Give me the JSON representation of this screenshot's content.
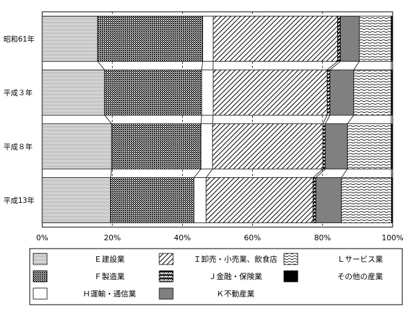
{
  "chart_data": {
    "type": "bar",
    "orientation": "horizontal",
    "stacked": "percent",
    "categories": [
      "昭和61年",
      "平成３年",
      "平成８年",
      "平成13年"
    ],
    "series": [
      {
        "name": "Ｅ建設業",
        "values": [
          15.8,
          17.8,
          19.8,
          19.5
        ],
        "pattern": "hstripe"
      },
      {
        "name": "Ｆ製造業",
        "values": [
          30.0,
          27.7,
          25.5,
          23.8
        ],
        "pattern": "dots"
      },
      {
        "name": "Ｈ運輸・通信業",
        "values": [
          3.0,
          3.3,
          3.3,
          3.5
        ],
        "pattern": "white"
      },
      {
        "name": "Ｉ卸売・小売業、飲食店",
        "values": [
          35.5,
          32.5,
          31.5,
          30.5
        ],
        "pattern": "diag"
      },
      {
        "name": "Ｊ金融・保険業",
        "values": [
          0.8,
          0.8,
          0.7,
          0.8
        ],
        "pattern": "zigzag"
      },
      {
        "name": "Ｋ不動産業",
        "values": [
          5.4,
          6.8,
          6.3,
          7.3
        ],
        "pattern": "gray"
      },
      {
        "name": "Ｌサービス業",
        "values": [
          9.1,
          10.7,
          12.5,
          14.3
        ],
        "pattern": "wave"
      },
      {
        "name": "その他の産業",
        "values": [
          0.4,
          0.4,
          0.4,
          0.3
        ],
        "pattern": "black"
      }
    ],
    "xticks": [
      "0%",
      "20%",
      "40%",
      "60%",
      "80%",
      "100%"
    ],
    "xlim": [
      0,
      100
    ],
    "grid": "vertical dashed",
    "legend_position": "bottom",
    "colors": {
      "bar_edge": "#000000",
      "gray": "#808080",
      "background": "#ffffff"
    }
  }
}
